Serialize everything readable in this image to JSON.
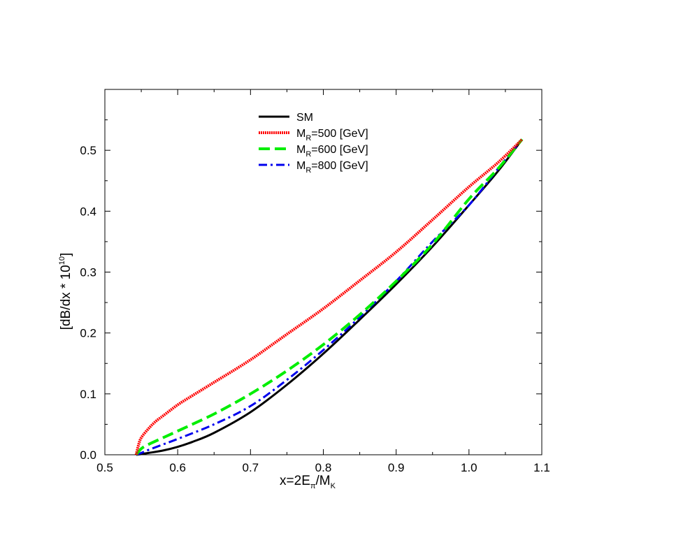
{
  "chart_data": {
    "type": "line",
    "xlabel": {
      "base": "x=2E",
      "sub1": "π",
      "mid": "/M",
      "sub2": "K"
    },
    "ylabel": {
      "base": "[dB/dx * 10",
      "sup": "10",
      "end": "]"
    },
    "xlim": [
      0.5,
      1.1
    ],
    "ylim": [
      0.0,
      0.6
    ],
    "xticks": [
      "0.5",
      "0.6",
      "0.7",
      "0.8",
      "0.9",
      "1.0",
      "1.1"
    ],
    "yticks": [
      "0.0",
      "0.1",
      "0.2",
      "0.3",
      "0.4",
      "0.5"
    ],
    "legend": {
      "position": "top-center",
      "entries": [
        {
          "base": "SM",
          "sub": "",
          "rest": ""
        },
        {
          "base": "M",
          "sub": "R",
          "rest": "=500 [GeV]"
        },
        {
          "base": "M",
          "sub": "R",
          "rest": "=600 [GeV]"
        },
        {
          "base": "M",
          "sub": "R",
          "rest": "=800 [GeV]"
        }
      ]
    },
    "series": [
      {
        "style": "solid",
        "color": "#000000",
        "x": [
          0.543,
          0.56,
          0.58,
          0.6,
          0.62,
          0.65,
          0.7,
          0.75,
          0.8,
          0.85,
          0.9,
          0.95,
          1.0,
          1.04,
          1.073
        ],
        "y": [
          0.0,
          0.003,
          0.007,
          0.013,
          0.021,
          0.036,
          0.07,
          0.115,
          0.166,
          0.222,
          0.28,
          0.342,
          0.41,
          0.466,
          0.518
        ]
      },
      {
        "style": "dotted-thick",
        "color": "#ff0000",
        "x": [
          0.543,
          0.546,
          0.55,
          0.56,
          0.57,
          0.58,
          0.6,
          0.62,
          0.65,
          0.7,
          0.75,
          0.8,
          0.85,
          0.9,
          0.95,
          1.0,
          1.04,
          1.073
        ],
        "y": [
          0.0,
          0.015,
          0.028,
          0.043,
          0.055,
          0.064,
          0.082,
          0.097,
          0.119,
          0.156,
          0.198,
          0.24,
          0.286,
          0.333,
          0.386,
          0.44,
          0.48,
          0.518
        ]
      },
      {
        "style": "dashed",
        "color": "#00ee00",
        "x": [
          0.543,
          0.55,
          0.56,
          0.58,
          0.6,
          0.65,
          0.7,
          0.75,
          0.8,
          0.85,
          0.9,
          0.95,
          1.0,
          1.04,
          1.073
        ],
        "y": [
          0.0,
          0.01,
          0.017,
          0.028,
          0.039,
          0.067,
          0.1,
          0.138,
          0.181,
          0.23,
          0.285,
          0.346,
          0.42,
          0.47,
          0.518
        ]
      },
      {
        "style": "dashdot",
        "color": "#0000ee",
        "x": [
          0.543,
          0.55,
          0.56,
          0.58,
          0.6,
          0.65,
          0.7,
          0.75,
          0.8,
          0.85,
          0.9,
          0.95,
          1.0,
          1.04,
          1.073
        ],
        "y": [
          0.0,
          0.003,
          0.008,
          0.017,
          0.026,
          0.05,
          0.08,
          0.123,
          0.172,
          0.226,
          0.285,
          0.35,
          0.41,
          0.47,
          0.518
        ]
      }
    ]
  }
}
